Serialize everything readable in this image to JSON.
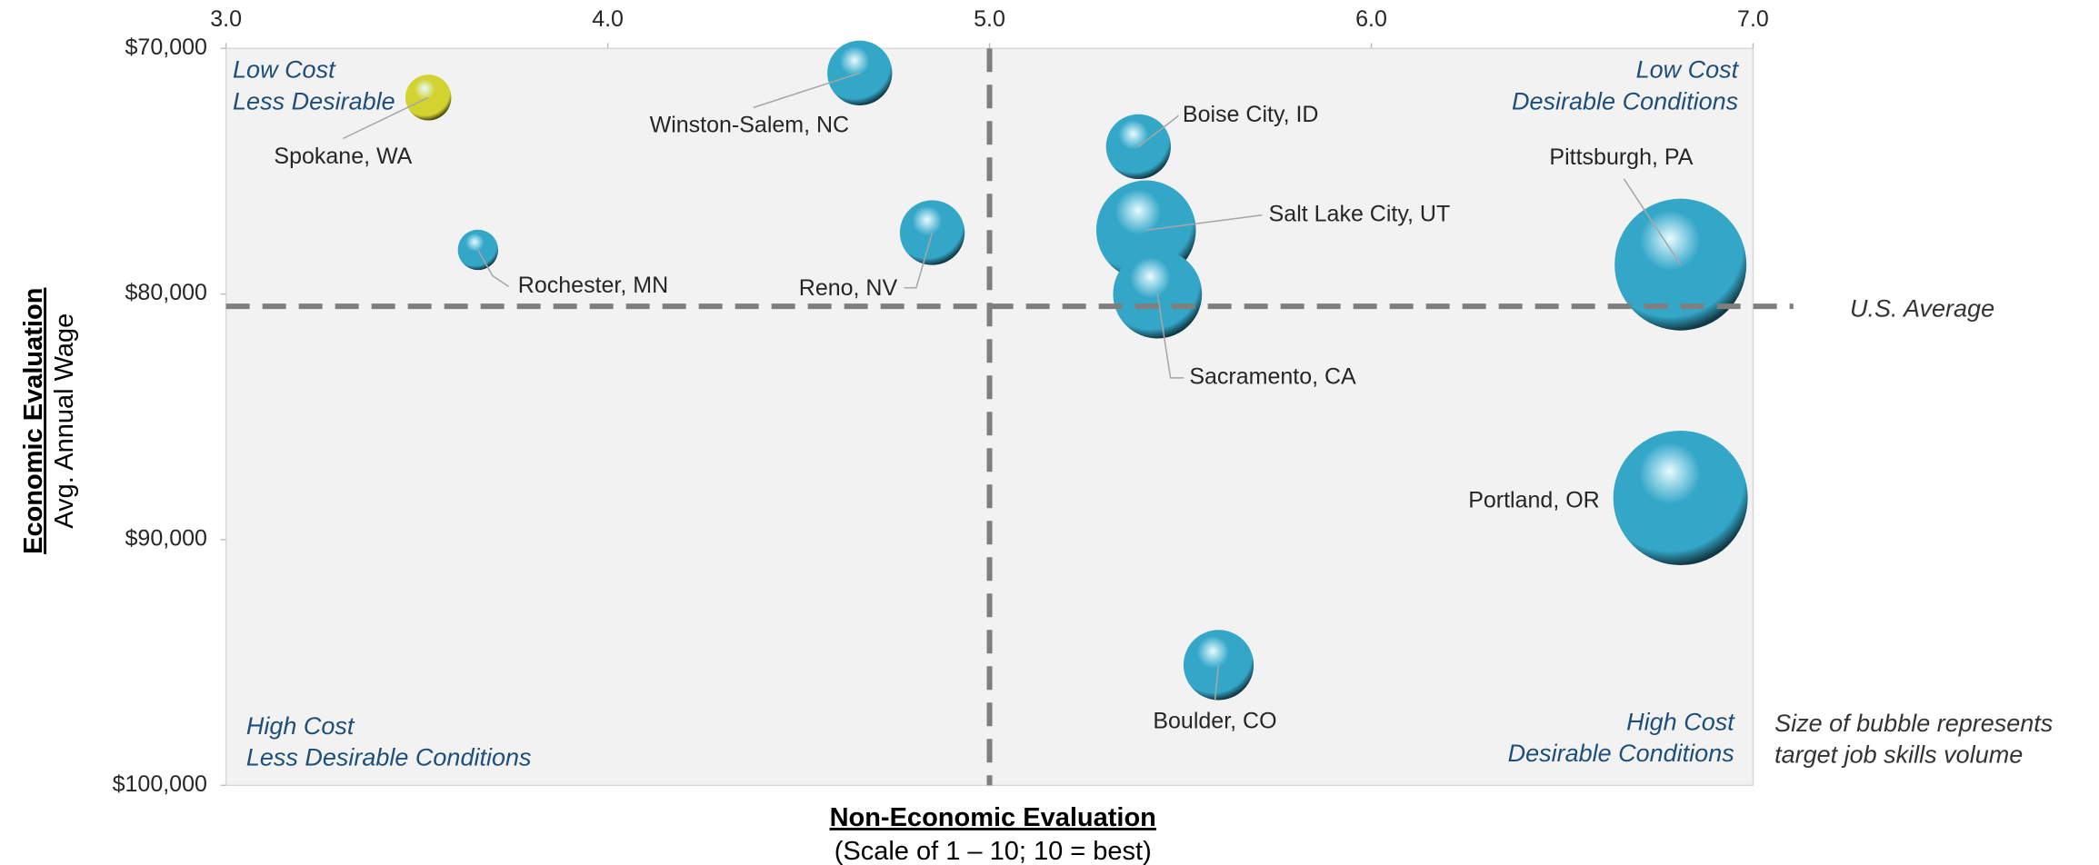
{
  "chart_data": {
    "type": "bubble",
    "x_label": "Non-Economic Evaluation",
    "x_sublabel": "(Scale of 1 – 10; 10 = best)",
    "y_label": "Economic Evaluation",
    "y_sublabel": "Avg. Annual Wage",
    "xlim": [
      3,
      7
    ],
    "xticks": [
      {
        "value": 3,
        "label": "3.0"
      },
      {
        "value": 4,
        "label": "4.0"
      },
      {
        "value": 5,
        "label": "5.0"
      },
      {
        "value": 6,
        "label": "6.0"
      },
      {
        "value": 7,
        "label": "7.0"
      }
    ],
    "ylim": [
      100000,
      70000
    ],
    "yticks": [
      {
        "value": 70000,
        "label": "$70,000"
      },
      {
        "value": 80000,
        "label": "$80,000"
      },
      {
        "value": 90000,
        "label": "$90,000"
      },
      {
        "value": 100000,
        "label": "$100,000"
      }
    ],
    "x_reference": 5,
    "y_reference": 80500,
    "y_reference_label": "U.S. Average",
    "labels": [
      "Spokane, WA",
      "Winston-Salem, NC",
      "Boise City, ID",
      "Rochester, MN",
      "Reno, NV",
      "Salt Lake City, UT",
      "Sacramento, CA",
      "Pittsburgh, PA",
      "Portland, OR",
      "Boulder, CO"
    ],
    "x": [
      3.53,
      4.66,
      5.39,
      3.66,
      4.85,
      5.41,
      5.44,
      6.81,
      6.81,
      5.6
    ],
    "y": [
      72000,
      71000,
      74000,
      78200,
      77500,
      77400,
      80000,
      78800,
      88300,
      95100
    ],
    "sizes": [
      290,
      580,
      580,
      225,
      580,
      1370,
      1090,
      2400,
      2500,
      680
    ],
    "colors": [
      "#d2d230",
      "#34a7c9",
      "#34a7c9",
      "#34a7c9",
      "#34a7c9",
      "#34a7c9",
      "#34a7c9",
      "#34a7c9",
      "#34a7c9",
      "#34a7c9"
    ],
    "quadrant_labels": [
      {
        "lines": [
          "Low Cost",
          "Less Desirable"
        ]
      },
      {
        "lines": [
          "Low Cost",
          "Desirable Conditions"
        ]
      },
      {
        "lines": [
          "High Cost",
          "Less Desirable Conditions"
        ]
      },
      {
        "lines": [
          "High Cost",
          "Desirable Conditions"
        ]
      }
    ],
    "size_note": [
      "Size of bubble represents",
      "target job skills volume"
    ]
  }
}
